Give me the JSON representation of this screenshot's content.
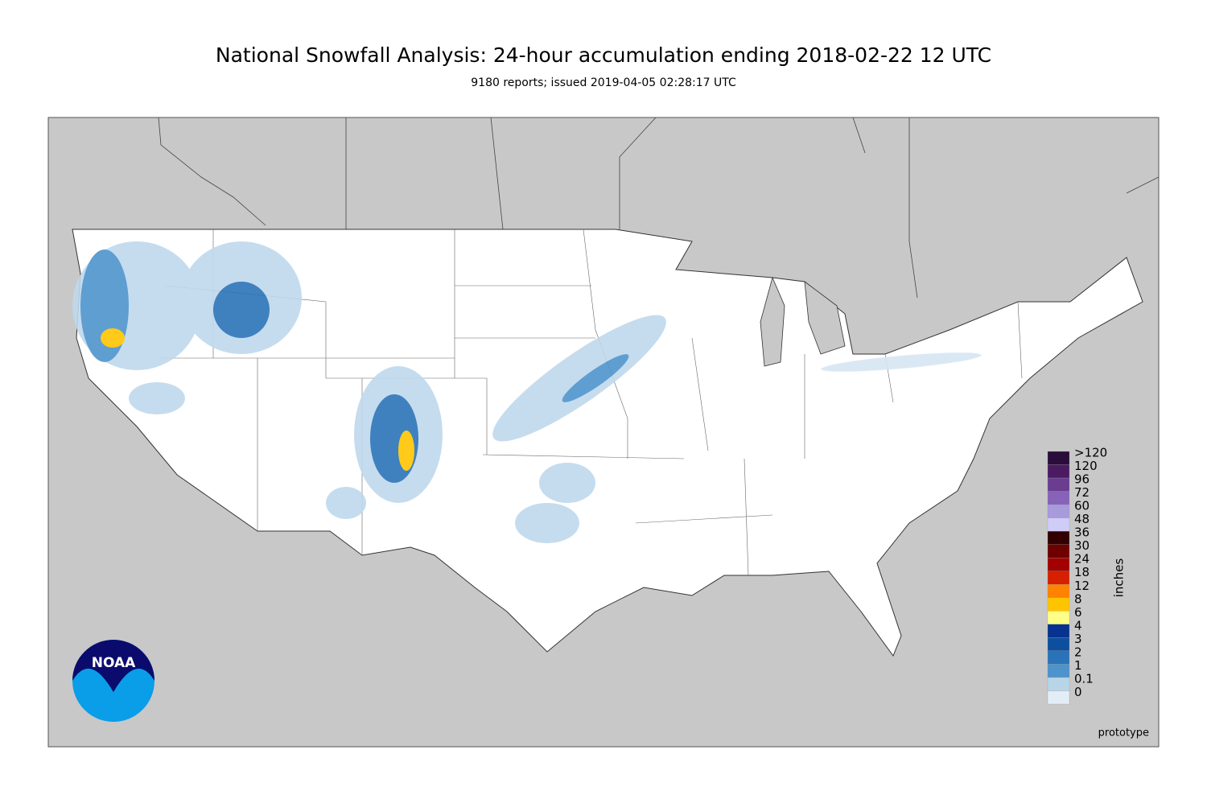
{
  "header": {
    "title": "National Snowfall Analysis: 24-hour accumulation ending 2018-02-22 12 UTC",
    "subtitle": "9180 reports; issued 2019-04-05 02:28:17 UTC"
  },
  "legend": {
    "title": "inches",
    "items": [
      {
        "label": ">120",
        "color": "#2a0d3a"
      },
      {
        "label": "120",
        "color": "#4b1b62"
      },
      {
        "label": "96",
        "color": "#6a3d91"
      },
      {
        "label": "72",
        "color": "#8662b8"
      },
      {
        "label": "60",
        "color": "#a89bdc"
      },
      {
        "label": "48",
        "color": "#d0ccf8"
      },
      {
        "label": "36",
        "color": "#320000"
      },
      {
        "label": "30",
        "color": "#6e0000"
      },
      {
        "label": "24",
        "color": "#a30000"
      },
      {
        "label": "18",
        "color": "#d62000"
      },
      {
        "label": "12",
        "color": "#ff8200"
      },
      {
        "label": "8",
        "color": "#ffc400"
      },
      {
        "label": "6",
        "color": "#ffff88"
      },
      {
        "label": "4",
        "color": "#08328f"
      },
      {
        "label": "3",
        "color": "#0c4f9e"
      },
      {
        "label": "2",
        "color": "#2a73b8"
      },
      {
        "label": "1",
        "color": "#4d93cc"
      },
      {
        "label": "0.1",
        "color": "#b8d4e8"
      },
      {
        "label": "0",
        "color": "#e2edf6"
      }
    ]
  },
  "footer": {
    "note": "prototype"
  },
  "logo": {
    "text": "NOAA"
  }
}
